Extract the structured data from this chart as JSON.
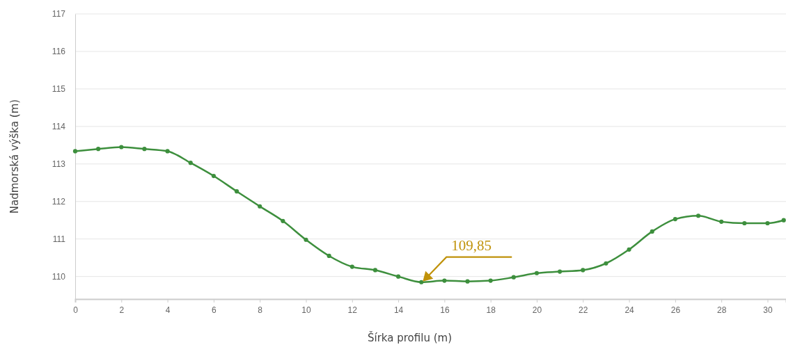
{
  "chart_data": {
    "type": "line",
    "xlabel": "Šírka profilu (m)",
    "ylabel": "Nadmorská výška (m)",
    "x": [
      0,
      1,
      2,
      3,
      4,
      5,
      6,
      7,
      8,
      9,
      10,
      11,
      12,
      13,
      14,
      15,
      16,
      17,
      18,
      19,
      20,
      21,
      22,
      23,
      24,
      25,
      26,
      27,
      28,
      29,
      30,
      30.7
    ],
    "series": [
      {
        "color": "#3d8f3d",
        "values": [
          113.34,
          113.4,
          113.45,
          113.4,
          113.34,
          113.03,
          112.68,
          112.27,
          111.87,
          111.48,
          110.98,
          110.55,
          110.26,
          110.17,
          110.0,
          109.85,
          109.89,
          109.87,
          109.89,
          109.98,
          110.09,
          110.13,
          110.17,
          110.35,
          110.72,
          111.2,
          111.53,
          111.62,
          111.46,
          111.42,
          111.42,
          111.5
        ]
      }
    ],
    "xlim": [
      0,
      30.8
    ],
    "xticks": [
      0,
      2,
      4,
      6,
      8,
      10,
      12,
      14,
      16,
      18,
      20,
      22,
      24,
      26,
      28,
      30
    ],
    "ylim": [
      109.4,
      117
    ],
    "yticks": [
      110,
      111,
      112,
      113,
      114,
      115,
      116,
      117
    ],
    "grid": "y",
    "marker": "circle",
    "line_style": "solid",
    "annotations": [
      {
        "text": "109,85",
        "x": 15,
        "y": 109.85
      }
    ]
  }
}
